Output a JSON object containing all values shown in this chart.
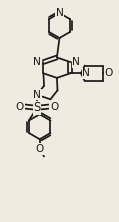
{
  "bg_color": "#f0ebe0",
  "line_color": "#1a1a1a",
  "line_width": 1.25,
  "font_size": 6.5,
  "figsize": [
    1.19,
    2.22
  ],
  "dpi": 100,
  "xlim": [
    0.0,
    1.0
  ],
  "ylim": [
    0.0,
    1.87
  ]
}
